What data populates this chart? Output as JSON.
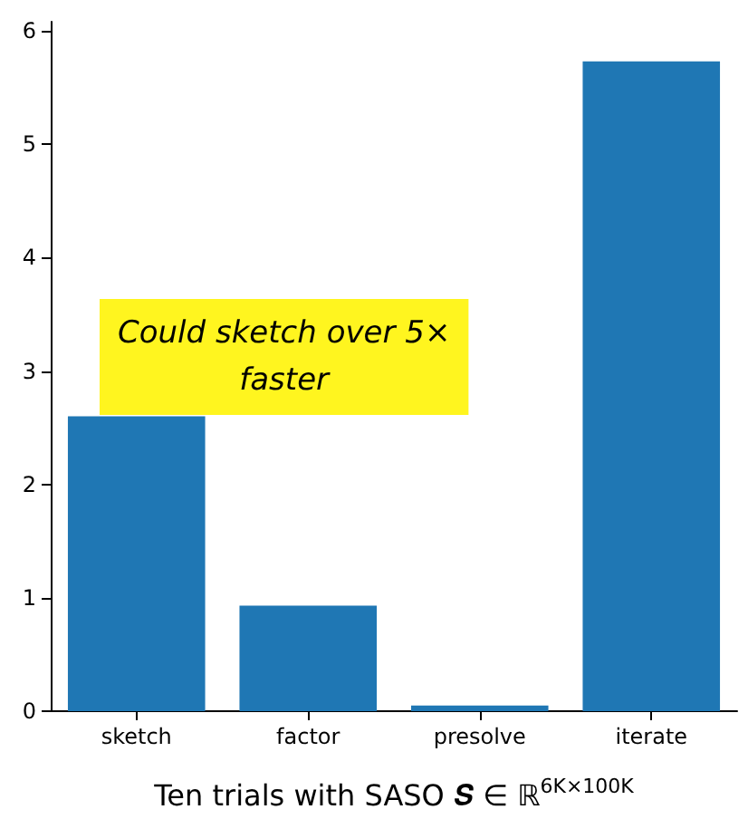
{
  "chart_data": {
    "type": "bar",
    "categories": [
      "sketch",
      "factor",
      "presolve",
      "iterate"
    ],
    "values": [
      2.6,
      0.93,
      0.05,
      5.73
    ],
    "color": "#1f77b4",
    "ylim": [
      0,
      6.08
    ],
    "yticks": [
      0,
      1,
      2,
      3,
      4,
      5,
      6
    ],
    "grid": false,
    "xlabel": "Ten trials with SASO 𝑺 ∈ ℝ$^{6K×100K}$",
    "annotations": [
      "Could sketch over 5×\nfaster"
    ]
  }
}
